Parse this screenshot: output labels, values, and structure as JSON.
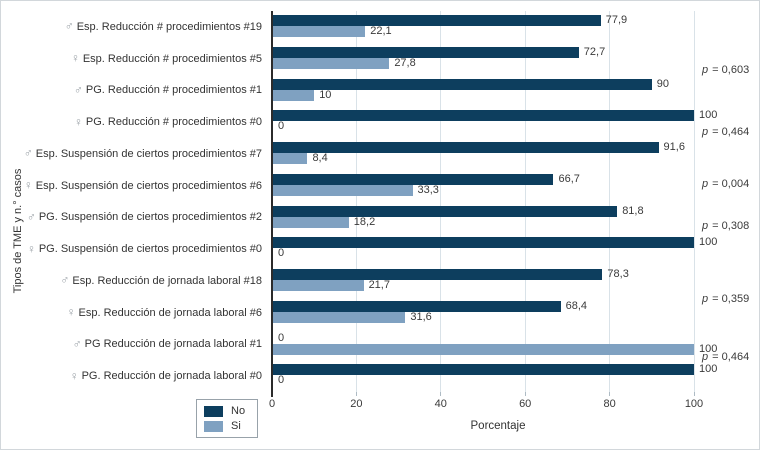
{
  "chart_data": {
    "type": "bar",
    "orientation": "horizontal",
    "xlabel": "Porcentaje",
    "ylabel": "Tipos de TME y n.° casos",
    "xlim": [
      0,
      100
    ],
    "x_ticks": [
      0,
      20,
      40,
      60,
      80,
      100
    ],
    "grid": true,
    "legend": {
      "position": "bottom-left",
      "entries": [
        {
          "name": "No",
          "color": "#0d3e5e"
        },
        {
          "name": "Si",
          "color": "#7fa1c1"
        }
      ]
    },
    "series_names": [
      "No",
      "Si"
    ],
    "categories": [
      {
        "symbol": "♂",
        "label": "Esp. Reducción # procedimientos #19",
        "no": 77.9,
        "no_label": "77,9",
        "si": 22.1,
        "si_label": "22,1"
      },
      {
        "symbol": "♀",
        "label": "Esp. Reducción # procedimientos #5",
        "no": 72.7,
        "no_label": "72,7",
        "si": 27.8,
        "si_label": "27,8"
      },
      {
        "symbol": "♂",
        "label": "PG. Reducción # procedimientos #1",
        "no": 90,
        "no_label": "90",
        "si": 10,
        "si_label": "10"
      },
      {
        "symbol": "♀",
        "label": "PG. Reducción # procedimientos #0",
        "no": 100,
        "no_label": "100",
        "si": 0,
        "si_label": "0"
      },
      {
        "symbol": "♂",
        "label": "Esp. Suspensión de ciertos procedimientos #7",
        "no": 91.6,
        "no_label": "91,6",
        "si": 8.4,
        "si_label": "8,4"
      },
      {
        "symbol": "♀",
        "label": "Esp. Suspensión de ciertos procedimientos #6",
        "no": 66.7,
        "no_label": "66,7",
        "si": 33.3,
        "si_label": "33,3"
      },
      {
        "symbol": "♂",
        "label": "PG. Suspensión de ciertos procedimientos #2",
        "no": 81.8,
        "no_label": "81,8",
        "si": 18.2,
        "si_label": "18,2"
      },
      {
        "symbol": "♀",
        "label": "PG. Suspensión de ciertos procedimientos #0",
        "no": 100,
        "no_label": "100",
        "si": 0,
        "si_label": "0"
      },
      {
        "symbol": "♂",
        "label": "Esp. Reducción de jornada laboral #18",
        "no": 78.3,
        "no_label": "78,3",
        "si": 21.7,
        "si_label": "21,7"
      },
      {
        "symbol": "♀",
        "label": "Esp. Reducción de jornada laboral #6",
        "no": 68.4,
        "no_label": "68,4",
        "si": 31.6,
        "si_label": "31,6"
      },
      {
        "symbol": "♂",
        "label": "PG Reducción de jornada laboral #1",
        "no": 0,
        "no_label": "0",
        "si": 100,
        "si_label": "100"
      },
      {
        "symbol": "♀",
        "label": "PG. Reducción de jornada laboral #0",
        "no": 100,
        "no_label": "100",
        "si": 0,
        "si_label": "0"
      }
    ],
    "p_values": [
      {
        "p": "p",
        "rest": " = 0,603",
        "y": 71
      },
      {
        "p": "p",
        "rest": " = 0,464",
        "y": 133
      },
      {
        "p": "p",
        "rest": " = 0,004",
        "y": 185
      },
      {
        "p": "p",
        "rest": " = 0,308",
        "y": 227
      },
      {
        "p": "p",
        "rest": " = 0,359",
        "y": 300
      },
      {
        "p": "p",
        "rest": " = 0,464",
        "y": 358
      }
    ]
  },
  "colors": {
    "bar_no": "#0d3e5e",
    "bar_si": "#7fa1c1",
    "gridline": "#d9e2e8",
    "axis_line": "#2b2b2b",
    "text": "#333333",
    "symbol": "#9aa1a7"
  }
}
